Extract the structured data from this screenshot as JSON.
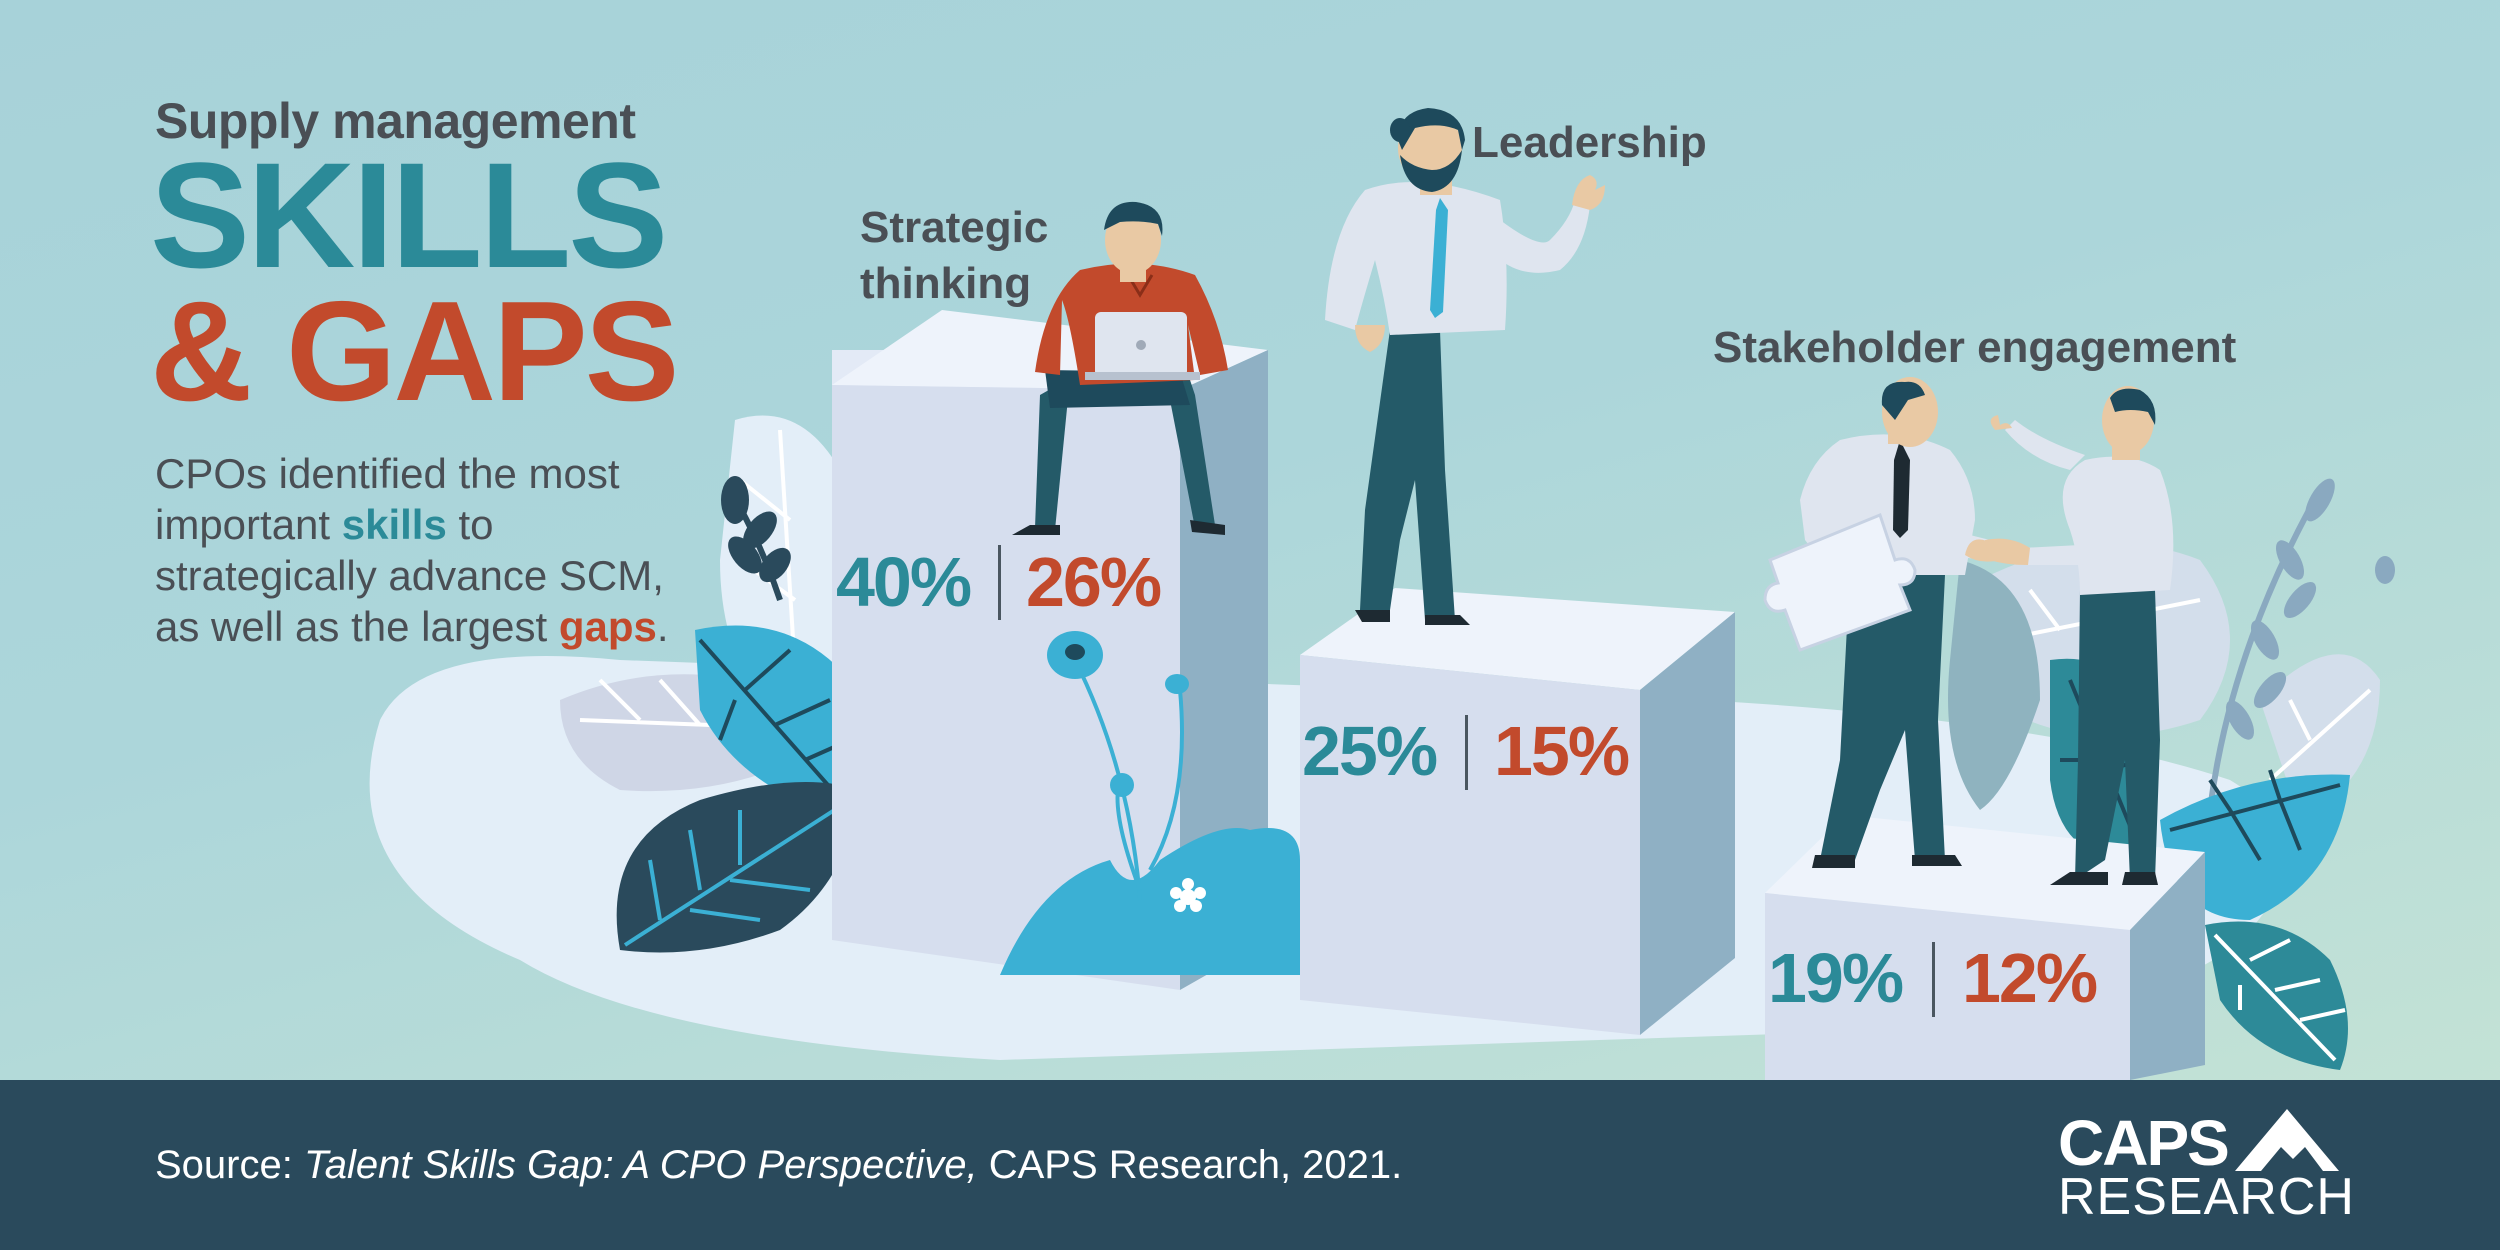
{
  "header": {
    "subtitle": "Supply management",
    "title_line1": "SKILLS",
    "title_line2": "& GAPS"
  },
  "intro": {
    "part1": "CPOs identified the most important ",
    "skills_word": "skills",
    "part2": " to strategically advance SCM, as well as the largest ",
    "gaps_word": "gaps",
    "part3": "."
  },
  "podiums": [
    {
      "label_line1": "Strategic",
      "label_line2": "thinking",
      "skill_pct": "40%",
      "gap_pct": "26%"
    },
    {
      "label": "Leadership",
      "skill_pct": "25%",
      "gap_pct": "15%"
    },
    {
      "label": "Stakeholder engagement",
      "skill_pct": "19%",
      "gap_pct": "12%"
    }
  ],
  "footer": {
    "source_prefix": "Source: ",
    "source_title": "Talent Skills Gap: A CPO Perspective,",
    "source_rest": " CAPS Research, 2021.",
    "logo_line1": "CAPS",
    "logo_line2": "RESEARCH"
  },
  "colors": {
    "skill": "#2b8a98",
    "gap": "#c24a2c",
    "footer_bg": "#2a4a5c",
    "text_dark": "#4a4f55"
  }
}
